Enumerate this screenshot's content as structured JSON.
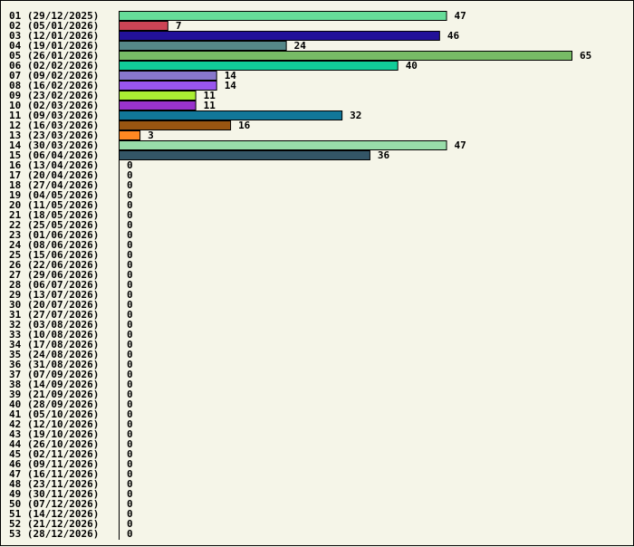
{
  "chart_data": {
    "type": "bar",
    "orientation": "horizontal",
    "categories": [
      "01 (29/12/2025)",
      "02 (05/01/2026)",
      "03 (12/01/2026)",
      "04 (19/01/2026)",
      "05 (26/01/2026)",
      "06 (02/02/2026)",
      "07 (09/02/2026)",
      "08 (16/02/2026)",
      "09 (23/02/2026)",
      "10 (02/03/2026)",
      "11 (09/03/2026)",
      "12 (16/03/2026)",
      "13 (23/03/2026)",
      "14 (30/03/2026)",
      "15 (06/04/2026)",
      "16 (13/04/2026)",
      "17 (20/04/2026)",
      "18 (27/04/2026)",
      "19 (04/05/2026)",
      "20 (11/05/2026)",
      "21 (18/05/2026)",
      "22 (25/05/2026)",
      "23 (01/06/2026)",
      "24 (08/06/2026)",
      "25 (15/06/2026)",
      "26 (22/06/2026)",
      "27 (29/06/2026)",
      "28 (06/07/2026)",
      "29 (13/07/2026)",
      "30 (20/07/2026)",
      "31 (27/07/2026)",
      "32 (03/08/2026)",
      "33 (10/08/2026)",
      "34 (17/08/2026)",
      "35 (24/08/2026)",
      "36 (31/08/2026)",
      "37 (07/09/2026)",
      "38 (14/09/2026)",
      "39 (21/09/2026)",
      "40 (28/09/2026)",
      "41 (05/10/2026)",
      "42 (12/10/2026)",
      "43 (19/10/2026)",
      "44 (26/10/2026)",
      "45 (02/11/2026)",
      "46 (09/11/2026)",
      "47 (16/11/2026)",
      "48 (23/11/2026)",
      "49 (30/11/2026)",
      "50 (07/12/2026)",
      "51 (14/12/2026)",
      "52 (21/12/2026)",
      "53 (28/12/2026)"
    ],
    "values": [
      47,
      7,
      46,
      24,
      65,
      40,
      14,
      14,
      11,
      11,
      32,
      16,
      3,
      47,
      36,
      0,
      0,
      0,
      0,
      0,
      0,
      0,
      0,
      0,
      0,
      0,
      0,
      0,
      0,
      0,
      0,
      0,
      0,
      0,
      0,
      0,
      0,
      0,
      0,
      0,
      0,
      0,
      0,
      0,
      0,
      0,
      0,
      0,
      0,
      0,
      0,
      0,
      0
    ],
    "colors": [
      "#66dd99",
      "#cc4455",
      "#221199",
      "#558888",
      "#77bb66",
      "#11cc99",
      "#8877cc",
      "#9955ee",
      "#aaee33",
      "#9933cc",
      "#117799",
      "#995511",
      "#ff8822",
      "#99ddaa",
      "#335566"
    ],
    "xlim": [
      0,
      65
    ],
    "title": "",
    "xlabel": "",
    "ylabel": "",
    "grid": false,
    "legend": false
  }
}
